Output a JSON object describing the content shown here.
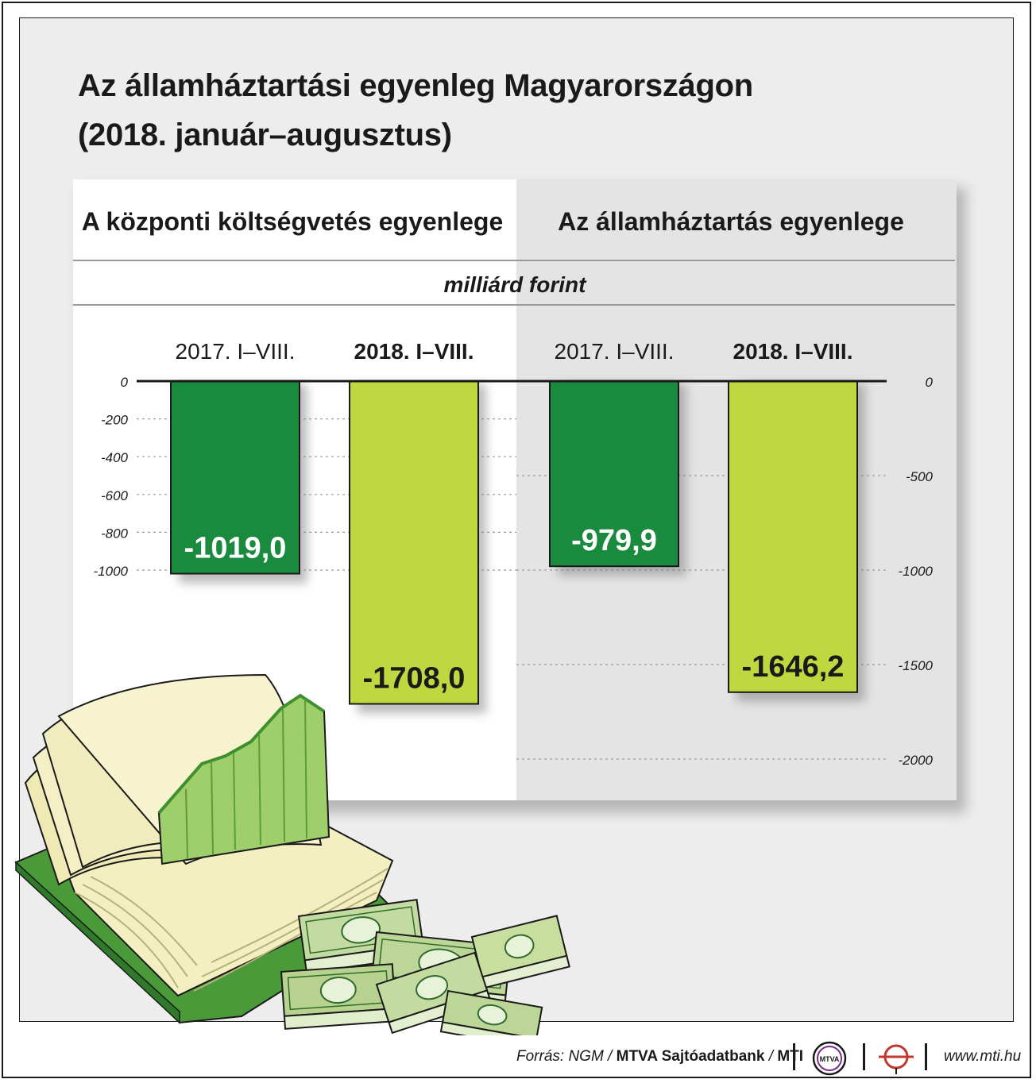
{
  "title": {
    "line1": "Az államháztartási egyenleg Magyarországon",
    "line2": "(2018. január–augusztus)"
  },
  "unit": "milliárd forint",
  "colors": {
    "dark_green": "#1a8a3e",
    "light_green": "#bfd840",
    "panel_bg": "#ffffff",
    "panel_shade": "#e2e2e2"
  },
  "chart_data": [
    {
      "type": "bar",
      "title": "A központi költségvetés egyenlege",
      "categories": [
        "2017. I–VIII.",
        "2018. I–VIII."
      ],
      "values": [
        -1019.0,
        -1708.0
      ],
      "value_labels": [
        "-1019,0",
        "-1708,0"
      ],
      "bar_colors": [
        "#1a8a3e",
        "#bfd840"
      ],
      "ylim": [
        -2000,
        0
      ],
      "yticks": [
        0,
        -200,
        -400,
        -600,
        -800,
        -1000
      ],
      "ytick_labels": [
        "0",
        "-200",
        "-400",
        "-600",
        "-800",
        "-1000"
      ],
      "grid": true,
      "axis_side": "left"
    },
    {
      "type": "bar",
      "title": "Az államháztartás egyenlege",
      "categories": [
        "2017. I–VIII.",
        "2018. I–VIII."
      ],
      "values": [
        -979.9,
        -1646.2
      ],
      "value_labels": [
        "-979,9",
        "-1646,2"
      ],
      "bar_colors": [
        "#1a8a3e",
        "#bfd840"
      ],
      "ylim": [
        -2000,
        0
      ],
      "yticks": [
        0,
        -500,
        -1000,
        -1500,
        -2000
      ],
      "ytick_labels": [
        "0",
        "-500",
        "-1000",
        "-1500",
        "-2000"
      ],
      "grid": true,
      "axis_side": "right"
    }
  ],
  "footer": {
    "source_prefix": "Forrás: NGM /",
    "source_bank": "MTVA Sajtóadatbank",
    "source_mid": "/",
    "source_mti": "MTI",
    "mtva_logo": "MTVA",
    "mti_logo_icon": "mti-logo-icon",
    "website": "www.mti.hu"
  },
  "illustration": {
    "book_icon": "open-book-with-chart-icon",
    "money_icon": "banknote-stacks-icon"
  }
}
